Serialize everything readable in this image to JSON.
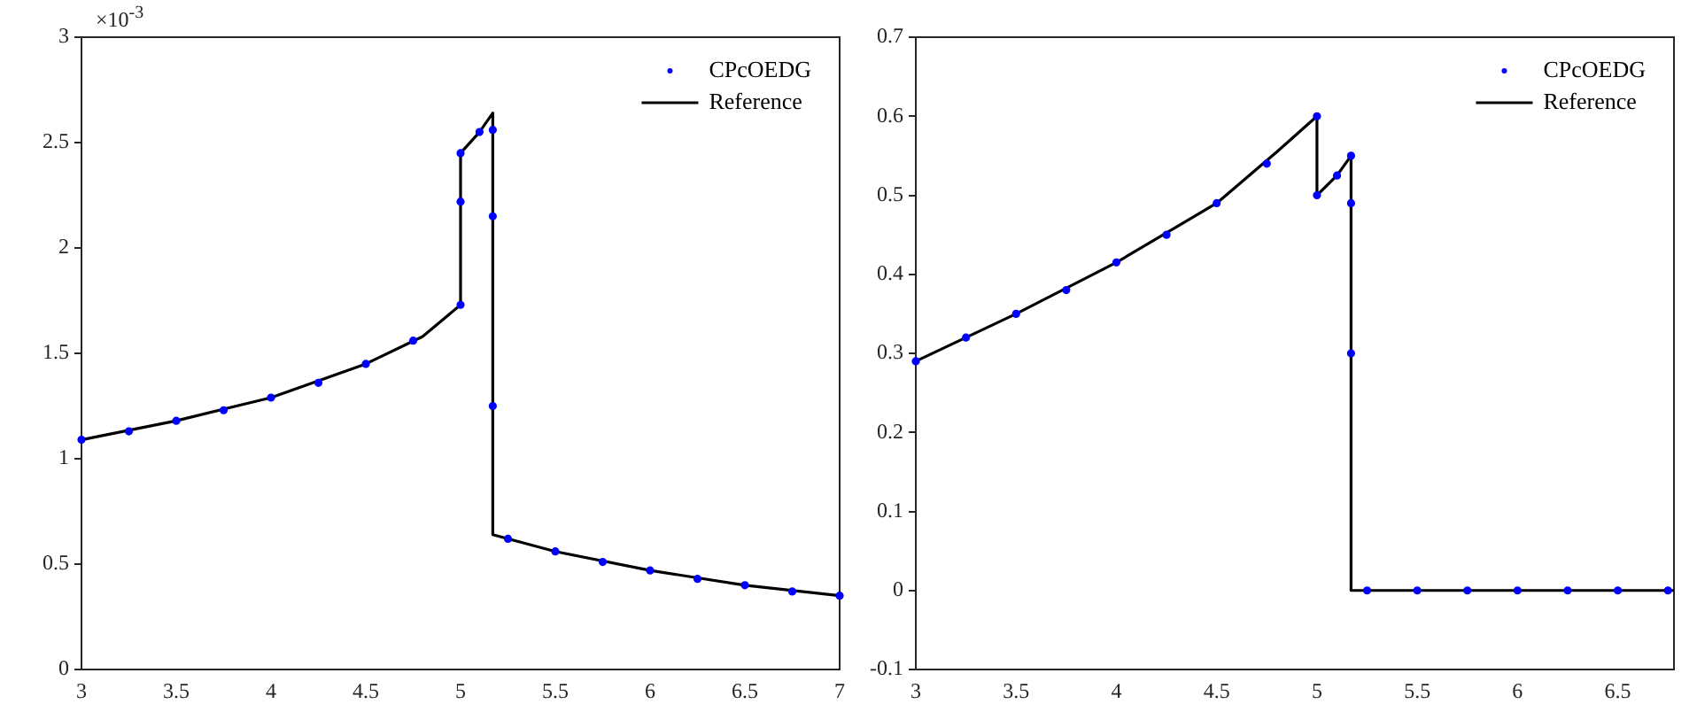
{
  "chart_data": [
    {
      "type": "line",
      "annotations": [
        "×10$^{-3}$"
      ],
      "xlim": [
        3,
        7
      ],
      "ylim": [
        0,
        3
      ],
      "xticks": [
        3,
        3.5,
        4,
        4.5,
        5,
        5.5,
        6,
        6.5,
        7
      ],
      "yticks": [
        0,
        0.5,
        1,
        1.5,
        2,
        2.5,
        3
      ],
      "grid": false,
      "legend": "top right",
      "series": [
        {
          "name": "CPcOEDG",
          "type": "scatter",
          "marker": "circle",
          "color": "#0000ff",
          "x": [
            3,
            3.25,
            3.5,
            3.75,
            4,
            4.25,
            4.5,
            4.75,
            5,
            5,
            5,
            5.1,
            5.17,
            5.17,
            5.17,
            5.25,
            5.5,
            5.75,
            6,
            6.25,
            6.5,
            6.75,
            7
          ],
          "values": [
            1.09,
            1.13,
            1.18,
            1.23,
            1.29,
            1.36,
            1.45,
            1.56,
            1.73,
            2.22,
            2.45,
            2.55,
            2.56,
            2.15,
            1.25,
            0.62,
            0.56,
            0.51,
            0.47,
            0.43,
            0.4,
            0.37,
            0.35
          ]
        },
        {
          "name": "Reference",
          "type": "line",
          "marker": "none",
          "color": "#000000",
          "x": [
            3,
            3.5,
            4,
            4.5,
            4.8,
            5,
            5,
            5.1,
            5.17,
            5.17,
            5.5,
            6,
            6.5,
            7
          ],
          "values": [
            1.09,
            1.18,
            1.29,
            1.45,
            1.58,
            1.73,
            2.45,
            2.55,
            2.64,
            0.64,
            0.56,
            0.47,
            0.4,
            0.35
          ]
        }
      ]
    },
    {
      "type": "line",
      "xlim": [
        3,
        6.78
      ],
      "ylim": [
        -0.1,
        0.7
      ],
      "xticks": [
        3,
        3.5,
        4,
        4.5,
        5,
        5.5,
        6,
        6.5
      ],
      "yticks": [
        -0.1,
        0,
        0.1,
        0.2,
        0.3,
        0.4,
        0.5,
        0.6,
        0.7
      ],
      "grid": false,
      "legend": "top right",
      "series": [
        {
          "name": "CPcOEDG",
          "type": "scatter",
          "marker": "circle",
          "color": "#0000ff",
          "x": [
            3,
            3.25,
            3.5,
            3.75,
            4,
            4.25,
            4.5,
            4.75,
            5,
            5,
            5.1,
            5.17,
            5.17,
            5.17,
            5.25,
            5.5,
            5.75,
            6,
            6.25,
            6.5,
            6.75
          ],
          "values": [
            0.29,
            0.32,
            0.35,
            0.38,
            0.415,
            0.45,
            0.49,
            0.54,
            0.6,
            0.5,
            0.525,
            0.55,
            0.49,
            0.3,
            0,
            0,
            0,
            0,
            0,
            0,
            0
          ]
        },
        {
          "name": "Reference",
          "type": "line",
          "marker": "none",
          "color": "#000000",
          "x": [
            3,
            3.5,
            4,
            4.5,
            4.8,
            5,
            5,
            5.1,
            5.17,
            5.17,
            5.5,
            6,
            6.5,
            6.78
          ],
          "values": [
            0.29,
            0.35,
            0.415,
            0.49,
            0.555,
            0.6,
            0.5,
            0.525,
            0.55,
            0,
            0,
            0,
            0,
            0
          ]
        }
      ]
    }
  ]
}
